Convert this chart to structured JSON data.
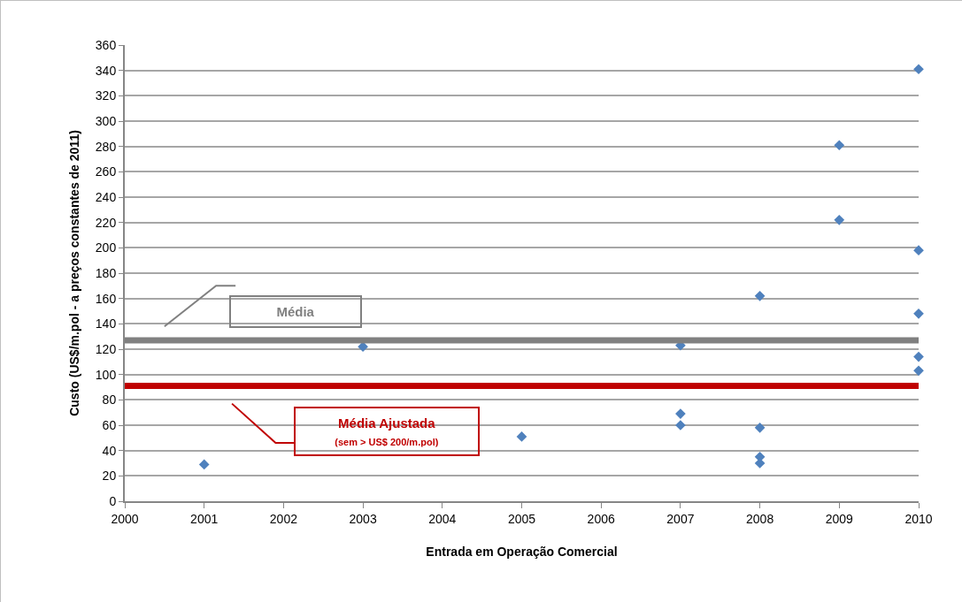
{
  "chart_data": {
    "type": "scatter",
    "xlabel": "Entrada em Operação Comercial",
    "ylabel": "Custo (US$/m.pol - a preços constantes de 2011)",
    "x": [
      2001,
      2003,
      2005,
      2007,
      2007,
      2007,
      2008,
      2008,
      2008,
      2008,
      2009,
      2009,
      2010,
      2010,
      2010,
      2010,
      2010
    ],
    "series": [
      {
        "color": "#4f81bd",
        "values": [
          29,
          122,
          51,
          123,
          69,
          60,
          162,
          58,
          35,
          30,
          281,
          222,
          341,
          198,
          148,
          114,
          103
        ]
      }
    ],
    "xlim": [
      2000,
      2010
    ],
    "xticks": [
      2000,
      2001,
      2002,
      2003,
      2004,
      2005,
      2006,
      2007,
      2008,
      2009,
      2010
    ],
    "ylim": [
      0,
      360
    ],
    "yticks": [
      0,
      20,
      40,
      60,
      80,
      100,
      120,
      140,
      160,
      180,
      200,
      220,
      240,
      260,
      280,
      300,
      320,
      340,
      360
    ],
    "grid": "y",
    "marker": "diamond",
    "ref_lines": [
      {
        "axis": "y",
        "value": 127,
        "label": "Média",
        "color": "#808080",
        "line_style": "solid"
      },
      {
        "axis": "y",
        "value": 91,
        "label": "Média Ajustada\n(sem > US$ 200/m.pol)",
        "color": "#c00000",
        "line_style": "solid"
      }
    ]
  }
}
